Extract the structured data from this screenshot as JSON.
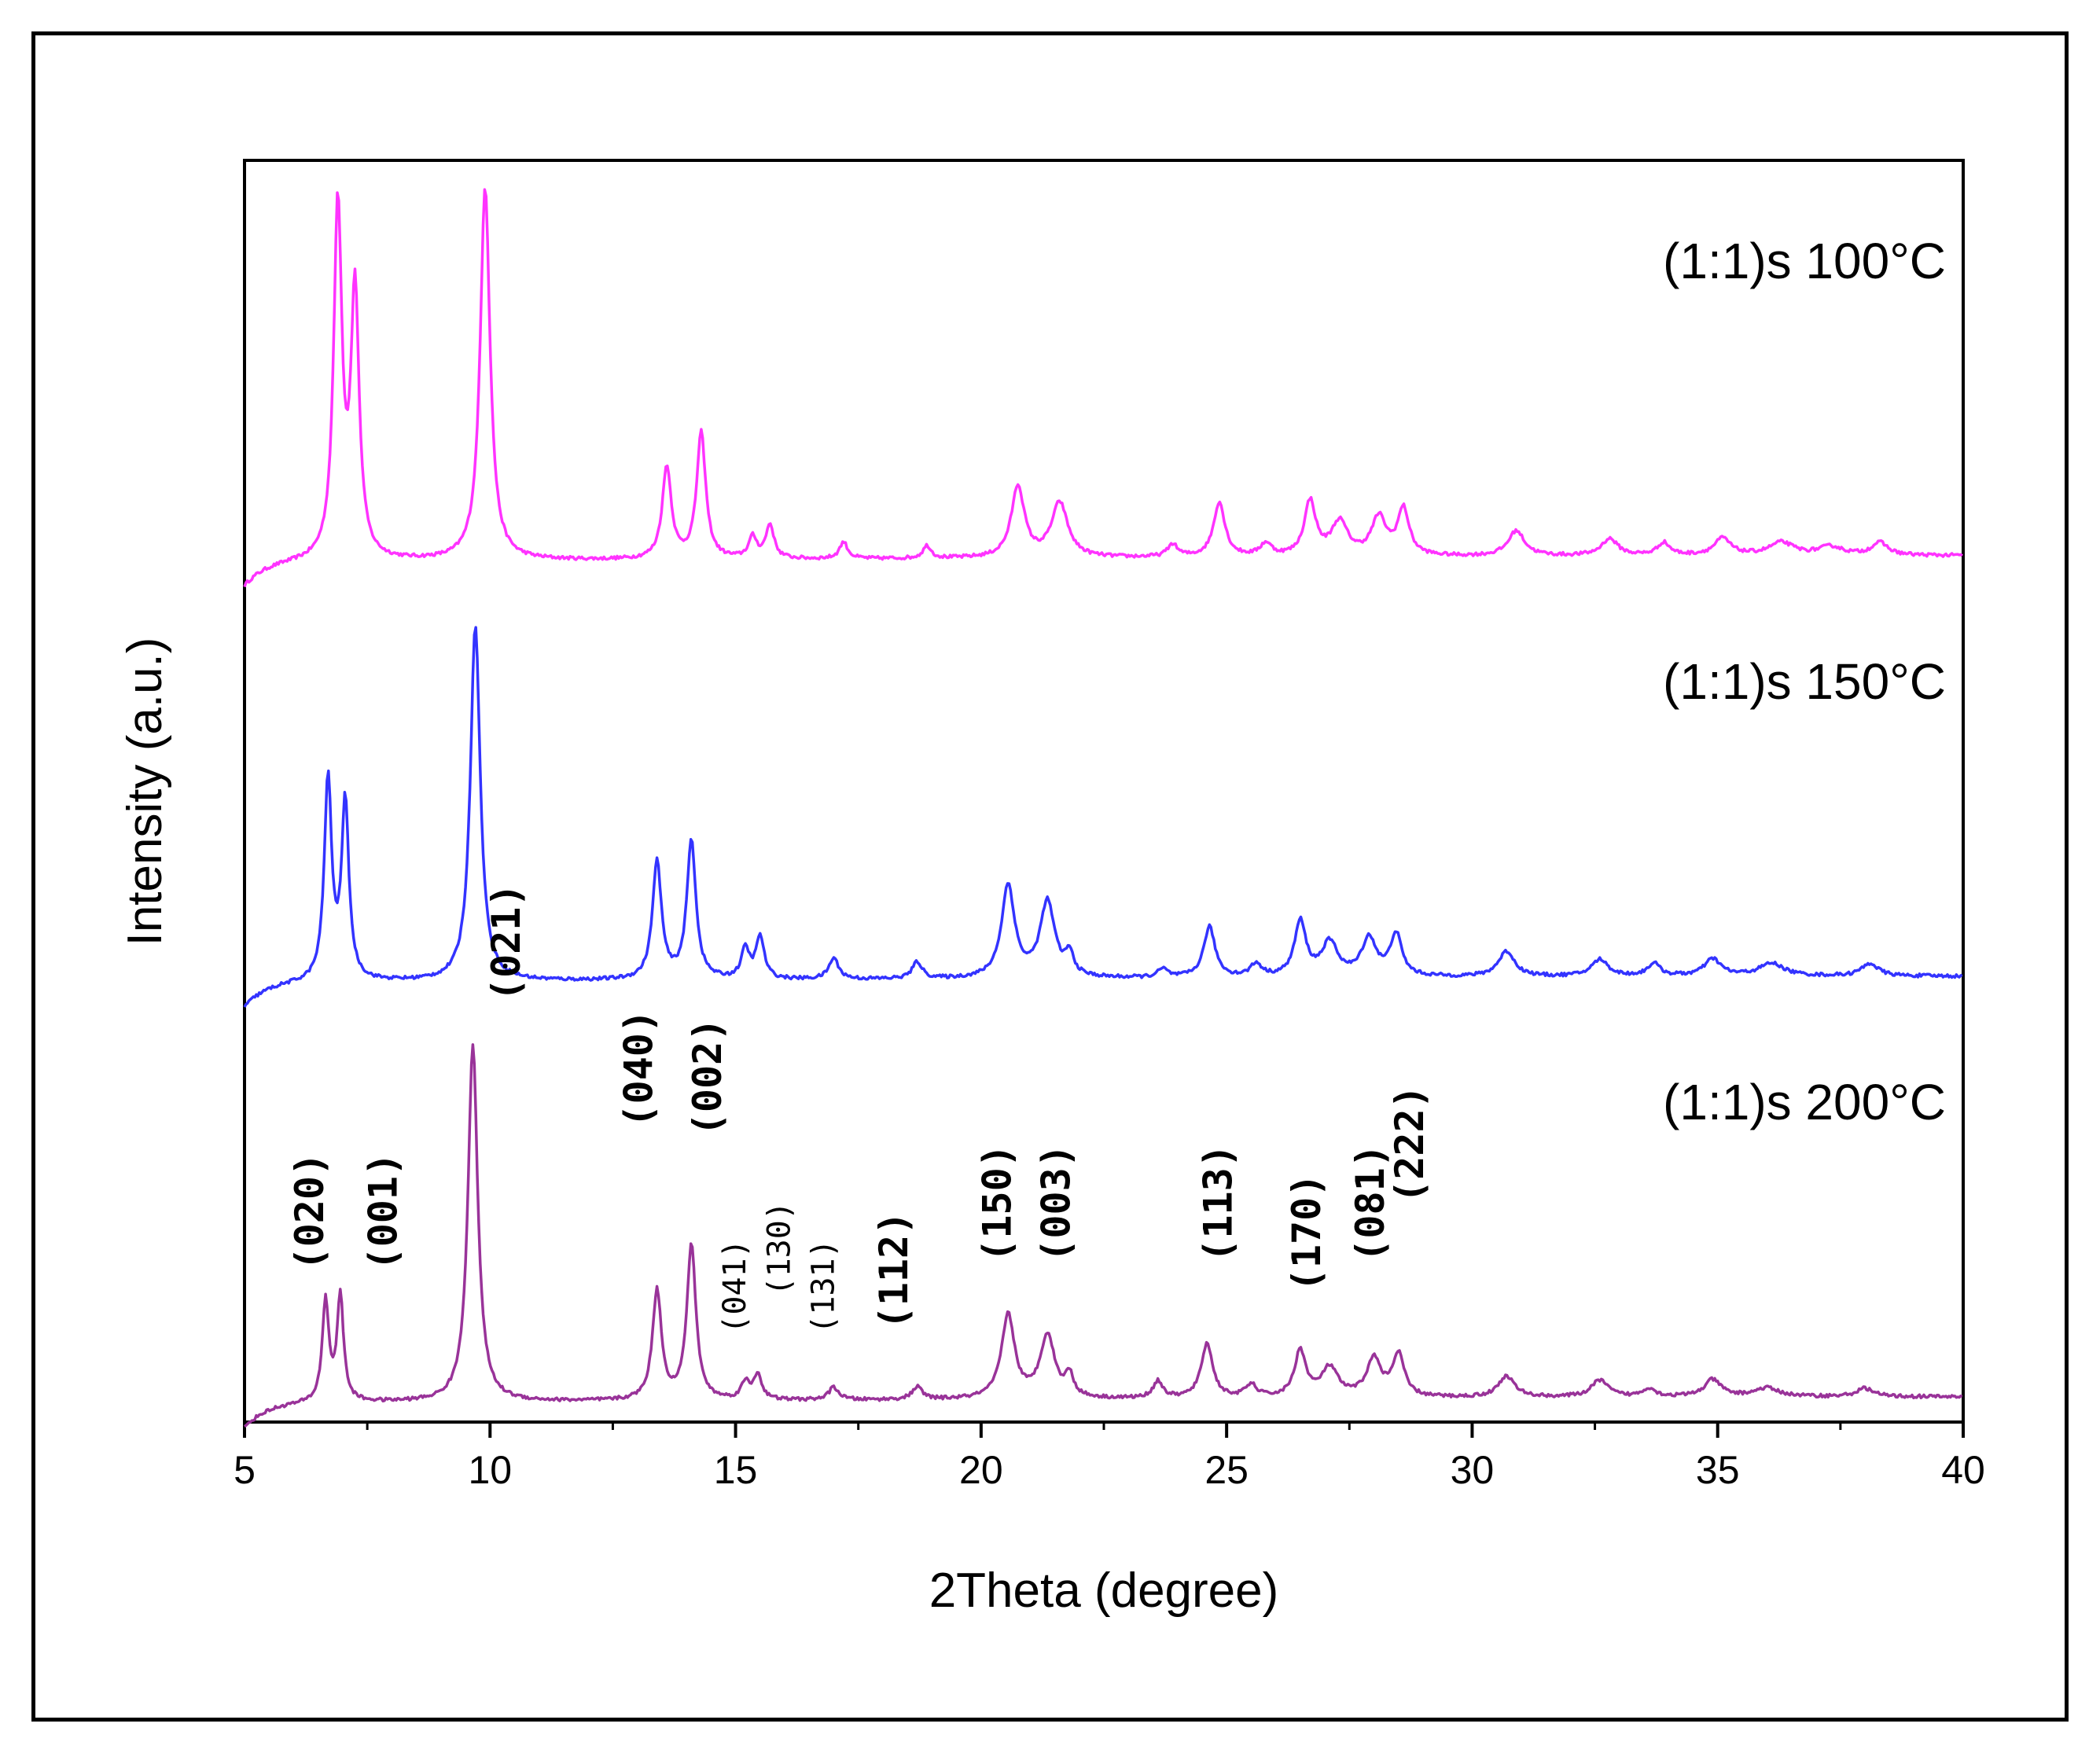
{
  "chart_data": {
    "type": "line",
    "xlabel": "2Theta (degree)",
    "ylabel": "Intensity (a.u.)",
    "xlim": [
      5,
      40
    ],
    "xticks": [
      5,
      10,
      15,
      20,
      25,
      30,
      35,
      40
    ],
    "xtick_labels": [
      "5",
      "10",
      "15",
      "20",
      "25",
      "30",
      "35",
      "40"
    ],
    "ylim": [
      0,
      3
    ],
    "yticks_shown": false,
    "legend": "inline labels at right of each trace",
    "series": [
      {
        "name": "(1:1)s 100°C",
        "color": "#ff33ff",
        "offset": 2.0,
        "baseline": 0.06,
        "peaks": [
          [
            6.9,
            0.84,
            0.1
          ],
          [
            7.25,
            0.63,
            0.1
          ],
          [
            9.9,
            0.89,
            0.12
          ],
          [
            13.6,
            0.22,
            0.11
          ],
          [
            14.3,
            0.3,
            0.11
          ],
          [
            15.35,
            0.05,
            0.1
          ],
          [
            15.7,
            0.08,
            0.1
          ],
          [
            17.2,
            0.04,
            0.1
          ],
          [
            18.9,
            0.03,
            0.1
          ],
          [
            20.75,
            0.17,
            0.16
          ],
          [
            21.6,
            0.13,
            0.2
          ],
          [
            23.9,
            0.03,
            0.12
          ],
          [
            24.85,
            0.13,
            0.14
          ],
          [
            25.8,
            0.03,
            0.14
          ],
          [
            26.7,
            0.13,
            0.14
          ],
          [
            27.3,
            0.08,
            0.2
          ],
          [
            28.1,
            0.09,
            0.18
          ],
          [
            28.6,
            0.11,
            0.14
          ],
          [
            30.9,
            0.06,
            0.2
          ],
          [
            32.8,
            0.04,
            0.2
          ],
          [
            33.9,
            0.03,
            0.15
          ],
          [
            35.1,
            0.04,
            0.2
          ],
          [
            36.3,
            0.03,
            0.3
          ],
          [
            37.3,
            0.02,
            0.3
          ],
          [
            38.3,
            0.03,
            0.2
          ]
        ]
      },
      {
        "name": "(1:1)s 150°C",
        "color": "#3333ff",
        "offset": 1.0,
        "baseline": 0.06,
        "peaks": [
          [
            6.7,
            0.48,
            0.09
          ],
          [
            7.05,
            0.42,
            0.09
          ],
          [
            9.7,
            0.85,
            0.12
          ],
          [
            13.4,
            0.28,
            0.11
          ],
          [
            14.1,
            0.33,
            0.11
          ],
          [
            15.2,
            0.07,
            0.1
          ],
          [
            15.5,
            0.1,
            0.1
          ],
          [
            17.0,
            0.05,
            0.12
          ],
          [
            18.7,
            0.04,
            0.12
          ],
          [
            20.55,
            0.22,
            0.16
          ],
          [
            21.35,
            0.18,
            0.18
          ],
          [
            21.8,
            0.05,
            0.1
          ],
          [
            23.7,
            0.02,
            0.12
          ],
          [
            24.65,
            0.12,
            0.14
          ],
          [
            25.6,
            0.03,
            0.14
          ],
          [
            26.5,
            0.13,
            0.14
          ],
          [
            27.1,
            0.08,
            0.2
          ],
          [
            27.9,
            0.09,
            0.18
          ],
          [
            28.45,
            0.1,
            0.14
          ],
          [
            30.7,
            0.06,
            0.2
          ],
          [
            32.6,
            0.04,
            0.2
          ],
          [
            33.7,
            0.03,
            0.15
          ],
          [
            34.9,
            0.04,
            0.2
          ],
          [
            36.1,
            0.03,
            0.3
          ],
          [
            38.1,
            0.03,
            0.2
          ]
        ]
      },
      {
        "name": "(1:1)s 200°C",
        "color": "#993399",
        "offset": 0.0,
        "baseline": 0.06,
        "peaks": [
          [
            6.65,
            0.24,
            0.08
          ],
          [
            6.95,
            0.25,
            0.08
          ],
          [
            9.65,
            0.85,
            0.12
          ],
          [
            13.4,
            0.26,
            0.11
          ],
          [
            14.1,
            0.37,
            0.11
          ],
          [
            15.2,
            0.04,
            0.1
          ],
          [
            15.45,
            0.06,
            0.1
          ],
          [
            17.0,
            0.03,
            0.12
          ],
          [
            18.7,
            0.03,
            0.12
          ],
          [
            20.55,
            0.2,
            0.16
          ],
          [
            21.35,
            0.15,
            0.18
          ],
          [
            21.8,
            0.05,
            0.1
          ],
          [
            23.6,
            0.04,
            0.12
          ],
          [
            24.6,
            0.13,
            0.14
          ],
          [
            25.5,
            0.03,
            0.14
          ],
          [
            26.5,
            0.11,
            0.14
          ],
          [
            27.1,
            0.07,
            0.2
          ],
          [
            28.0,
            0.09,
            0.18
          ],
          [
            28.5,
            0.1,
            0.14
          ],
          [
            30.7,
            0.05,
            0.2
          ],
          [
            32.6,
            0.04,
            0.2
          ],
          [
            33.6,
            0.02,
            0.15
          ],
          [
            34.9,
            0.04,
            0.2
          ],
          [
            36.0,
            0.02,
            0.3
          ],
          [
            38.0,
            0.02,
            0.2
          ]
        ]
      }
    ],
    "annotations": [
      {
        "text": "(020)",
        "x": 6.6,
        "y": 0.36,
        "size": "large"
      },
      {
        "text": "(001)",
        "x": 8.1,
        "y": 0.36,
        "size": "large"
      },
      {
        "text": "(021)",
        "x": 10.6,
        "y": 1.0,
        "size": "large"
      },
      {
        "text": "(040)",
        "x": 13.3,
        "y": 0.7,
        "size": "large"
      },
      {
        "text": "(002)",
        "x": 14.7,
        "y": 0.68,
        "size": "large"
      },
      {
        "text": "(041)",
        "x": 15.2,
        "y": 0.21,
        "size": "small"
      },
      {
        "text": "(130)",
        "x": 16.1,
        "y": 0.3,
        "size": "small"
      },
      {
        "text": "(131)",
        "x": 17.0,
        "y": 0.21,
        "size": "small"
      },
      {
        "text": "(112)",
        "x": 18.5,
        "y": 0.22,
        "size": "large"
      },
      {
        "text": "(150)",
        "x": 20.6,
        "y": 0.38,
        "size": "large"
      },
      {
        "text": "(003)",
        "x": 21.8,
        "y": 0.38,
        "size": "large"
      },
      {
        "text": "(113)",
        "x": 25.1,
        "y": 0.38,
        "size": "large"
      },
      {
        "text": "(170)",
        "x": 26.9,
        "y": 0.31,
        "size": "large"
      },
      {
        "text": "(081)",
        "x": 28.2,
        "y": 0.38,
        "size": "large"
      },
      {
        "text": "(222)",
        "x": 29.0,
        "y": 0.52,
        "size": "large"
      }
    ]
  }
}
